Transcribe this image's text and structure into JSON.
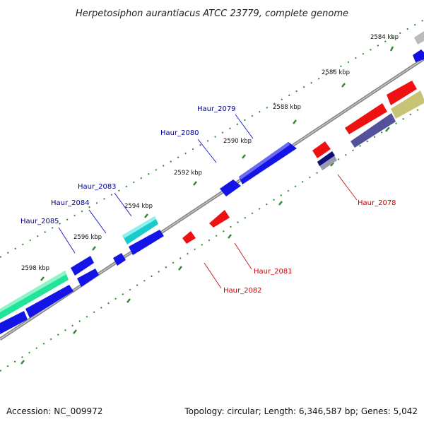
{
  "title": "Herpetosiphon aurantiacus ATCC 23779, complete genome",
  "footer": {
    "accession": "Accession: NC_009972",
    "summary": "Topology: circular; Length: 6,346,587 bp; Genes: 5,042"
  },
  "colors": {
    "forward_label": "#00008b",
    "reverse_label": "#cc0000",
    "tick": "#2e8b2e",
    "backbone": "#888888"
  },
  "kbp_ticks": [
    "2584 kbp",
    "2586 kbp",
    "2588 kbp",
    "2590 kbp",
    "2592 kbp",
    "2594 kbp",
    "2596 kbp",
    "2598 kbp"
  ],
  "gene_labels": {
    "forward": [
      "Haur_2079",
      "Haur_2080",
      "Haur_2083",
      "Haur_2084",
      "Haur_2085"
    ],
    "reverse": [
      "Haur_2078",
      "Haur_2081",
      "Haur_2082"
    ]
  }
}
